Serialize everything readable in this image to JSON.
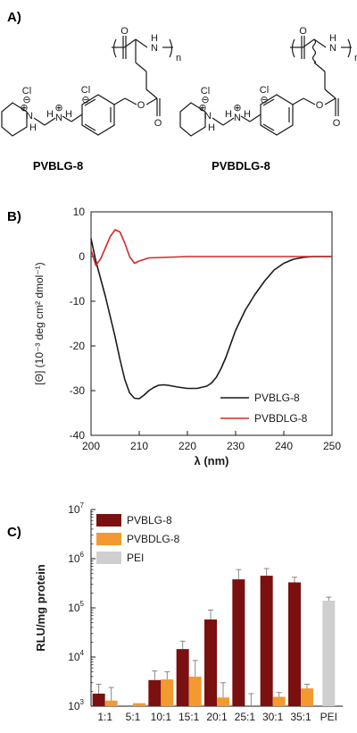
{
  "panels": {
    "a": {
      "label": "A)"
    },
    "b": {
      "label": "B)"
    },
    "c": {
      "label": "C)"
    }
  },
  "structures": {
    "left": {
      "name": "PVBLG-8",
      "atoms": {
        "o1": "O",
        "nh": "N",
        "h_of_nh": "H",
        "n_sub": "n",
        "o2": "O",
        "o3": "O",
        "cl1": "Cl",
        "minus1": "⊖",
        "cl2": "Cl",
        "minus2": "⊖",
        "n_amm": "N",
        "plus_amm": "⊕",
        "h_amm_l": "H",
        "h_amm_r": "H",
        "n_pip": "N",
        "plus_pip": "⊕",
        "h_pip": "H"
      }
    },
    "right": {
      "name": "PVBDLG-8",
      "atoms": {
        "o1": "O",
        "nh": "N",
        "h_of_nh": "H",
        "n_sub": "n",
        "o2": "O",
        "o3": "O",
        "cl1": "Cl",
        "minus1": "⊖",
        "cl2": "Cl",
        "minus2": "⊖",
        "n_amm": "N",
        "plus_amm": "⊕",
        "h_amm_l": "H",
        "h_amm_r": "H",
        "n_pip": "N",
        "plus_pip": "⊕",
        "h_pip": "H"
      }
    }
  },
  "chart_data": [
    {
      "type": "line",
      "xlabel": "λ (nm)",
      "ylabel": "[Θ] (10⁻³ deg cm² dmol⁻¹)",
      "xlim": [
        200,
        250
      ],
      "ylim": [
        -40,
        10
      ],
      "xticks": [
        200,
        210,
        220,
        230,
        240,
        250
      ],
      "yticks": [
        10,
        0,
        -10,
        -20,
        -30,
        -40
      ],
      "grid": false,
      "legend": "bottom-right",
      "series": [
        {
          "name": "PVBLG-8",
          "color": "#1a1a1a",
          "x": [
            200,
            201,
            202,
            203,
            204,
            205,
            206,
            207,
            208,
            209,
            210,
            211,
            212,
            213,
            214,
            215,
            216,
            218,
            220,
            222,
            224,
            225,
            226,
            227,
            228,
            229,
            230,
            232,
            234,
            236,
            238,
            240,
            242,
            244,
            246,
            248,
            250
          ],
          "y": [
            4,
            -1,
            -5,
            -9,
            -13.5,
            -18,
            -23,
            -27.5,
            -30.5,
            -31.7,
            -31.8,
            -31,
            -30,
            -29.3,
            -28.8,
            -28.7,
            -28.8,
            -29.2,
            -29.5,
            -29.5,
            -29,
            -28.3,
            -27,
            -25,
            -22.5,
            -19.5,
            -16.5,
            -12,
            -8.5,
            -5.5,
            -3,
            -1.5,
            -0.6,
            -0.2,
            0,
            0,
            0
          ]
        },
        {
          "name": "PVBDLG-8",
          "color": "#d42a2a",
          "x": [
            200,
            201,
            202,
            203,
            204,
            205,
            206,
            207,
            208,
            209,
            210,
            212,
            215,
            220,
            225,
            230,
            235,
            240,
            245,
            250
          ],
          "y": [
            1.5,
            -2,
            -0.5,
            2,
            4.5,
            6,
            5.5,
            3,
            0,
            -1.5,
            -1,
            -0.3,
            -0.2,
            0,
            0,
            0,
            0,
            0,
            0,
            0
          ]
        }
      ]
    },
    {
      "type": "bar",
      "ylabel": "RLU/mg protein",
      "yscale": "log",
      "ylim": [
        1000,
        10000000
      ],
      "ytick_bases": [
        "10",
        "10",
        "10",
        "10",
        "10"
      ],
      "ytick_exps": [
        "7",
        "6",
        "5",
        "4",
        "3"
      ],
      "ytick_values": [
        10000000,
        1000000,
        100000,
        10000,
        1000
      ],
      "categories": [
        "1:1",
        "5:1",
        "10:1",
        "15:1",
        "20:1",
        "25:1",
        "30:1",
        "35:1",
        "PEI"
      ],
      "legend": "top-left",
      "series": [
        {
          "name": "PVBLG-8",
          "color": "#7b1010",
          "values": [
            1800,
            1000,
            3400,
            14500,
            58000,
            380000,
            450000,
            330000,
            null
          ],
          "errors": [
            2800,
            0,
            5200,
            21000,
            90000,
            600000,
            630000,
            420000,
            null
          ]
        },
        {
          "name": "PVBDLG-8",
          "color": "#f29a30",
          "values": [
            1300,
            1150,
            3500,
            4000,
            1500,
            1000,
            1550,
            2300,
            null
          ],
          "errors": [
            2400,
            0,
            5000,
            8500,
            3000,
            1800,
            1900,
            2800,
            null
          ]
        },
        {
          "name": "PEI",
          "color": "#cfcfcf",
          "values": [
            null,
            null,
            null,
            null,
            null,
            null,
            null,
            null,
            140000
          ],
          "errors": [
            null,
            null,
            null,
            null,
            null,
            null,
            null,
            null,
            165000
          ]
        }
      ]
    }
  ]
}
